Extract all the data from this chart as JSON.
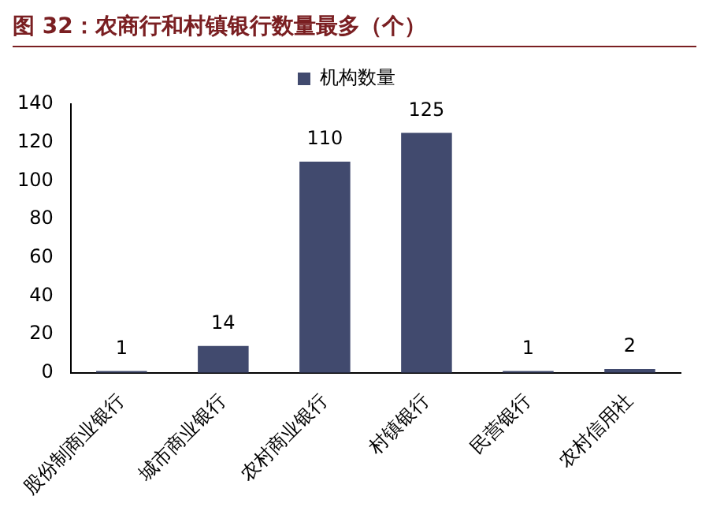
{
  "chart_data": {
    "type": "bar",
    "title": "图 32：农商行和村镇银行数量最多（个）",
    "categories": [
      "股份制商业银行",
      "城市商业银行",
      "农村商业银行",
      "村镇银行",
      "民营银行",
      "农村信用社"
    ],
    "series": [
      {
        "name": "机构数量",
        "color": "#414a6e",
        "values": [
          1,
          14,
          110,
          125,
          1,
          2
        ]
      }
    ],
    "ylim": [
      0,
      140
    ],
    "yticks": [
      0,
      20,
      40,
      60,
      80,
      100,
      120,
      140
    ],
    "grid": false,
    "legend": "top",
    "data_labels": true
  }
}
